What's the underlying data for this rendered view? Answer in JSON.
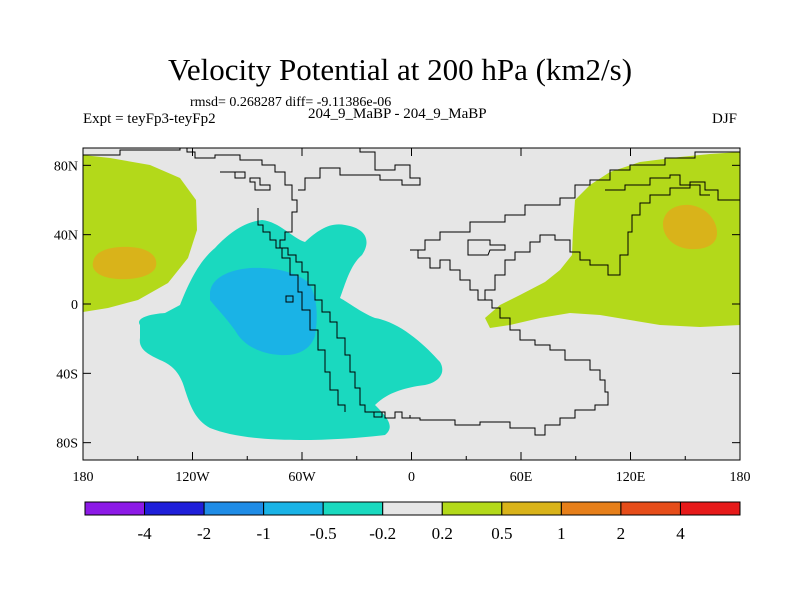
{
  "title": "Velocity Potential at 200 hPa (km2/s)",
  "stats": "rmsd= 0.268287 diff= -9.11386e-06",
  "expt": "Expt = teyFp3-teyFp2",
  "case_label": "204_9_MaBP - 204_9_MaBP",
  "season": "DJF",
  "chart_data": {
    "type": "filled-contour map",
    "variable": "Velocity Potential at 200 hPa",
    "units": "km2/s",
    "projection": "cylindrical equidistant",
    "lon_range": [
      -180,
      180
    ],
    "lat_range": [
      -90,
      90
    ],
    "x_ticks": [
      "180",
      "120W",
      "60W",
      "0",
      "60E",
      "120E",
      "180"
    ],
    "y_ticks": [
      "80N",
      "40N",
      "0",
      "40S",
      "80S"
    ],
    "levels": [
      "-4",
      "-2",
      "-1",
      "-0.5",
      "-0.2",
      "0.2",
      "0.5",
      "1",
      "2",
      "4"
    ],
    "colors": [
      "#8c1ae6",
      "#1f1fd9",
      "#1f8ce6",
      "#1ab3e6",
      "#1ad9bf",
      "#e6e6e6",
      "#b3d91a",
      "#d9b31a",
      "#e67f1a",
      "#e64d1a",
      "#e61a1a"
    ],
    "regions": [
      {
        "name": "positive-west",
        "range": "0.2 to 0.5",
        "lon_center": -160,
        "lat_center": 45
      },
      {
        "name": "positive-west-core",
        "range": "0.5 to 1",
        "lon_center": -158,
        "lat_center": 20
      },
      {
        "name": "negative-main",
        "range": "-0.5 to -0.2",
        "lon_center": -55,
        "lat_center": -20
      },
      {
        "name": "negative-core",
        "range": "-1 to -0.5",
        "lon_center": -70,
        "lat_center": -10
      },
      {
        "name": "positive-east",
        "range": "0.2 to 0.5",
        "lon_center": 110,
        "lat_center": 40
      },
      {
        "name": "positive-east-core",
        "range": "0.5 to 1",
        "lon_center": 150,
        "lat_center": 40
      }
    ]
  }
}
